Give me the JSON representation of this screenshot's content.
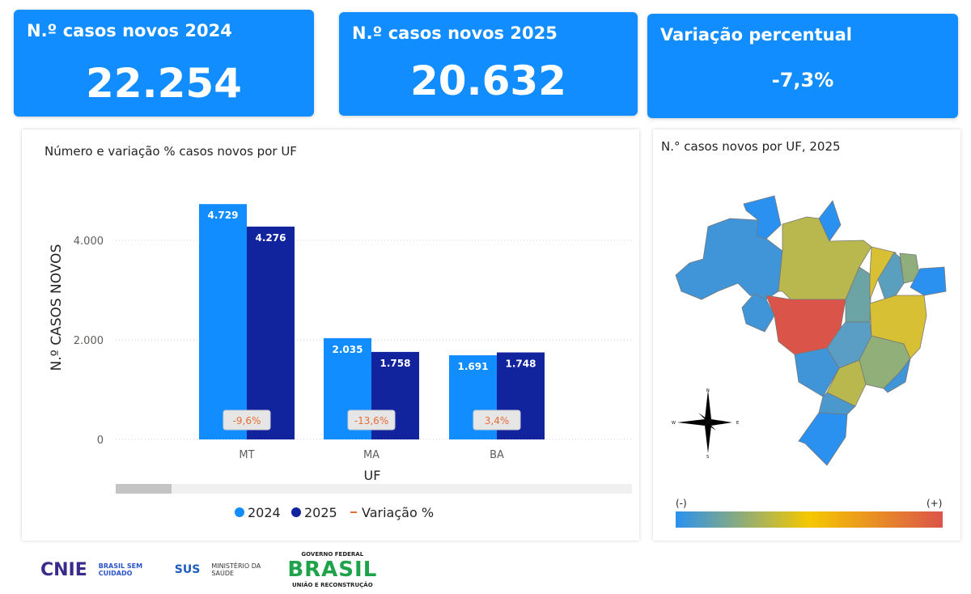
{
  "kpis": [
    {
      "title": "N.º casos novos 2024",
      "value": "22.254"
    },
    {
      "title": "N.º casos novos 2025",
      "value": "20.632"
    },
    {
      "title": "Variação percentual",
      "value": "-7,3%"
    }
  ],
  "chart_data": {
    "type": "bar",
    "title": "Número e variação % casos novos por UF",
    "xlabel": "UF",
    "ylabel": "N.º CASOS NOVOS",
    "categories": [
      "MT",
      "MA",
      "BA"
    ],
    "series": [
      {
        "name": "2024",
        "color": "#118DFF",
        "values": [
          4729,
          2035,
          1691
        ],
        "labels": [
          "4.729",
          "2.035",
          "1.691"
        ]
      },
      {
        "name": "2025",
        "color": "#12239E",
        "values": [
          4276,
          1758,
          1748
        ],
        "labels": [
          "4.276",
          "1.758",
          "1.748"
        ]
      }
    ],
    "variation": {
      "name": "Variação %",
      "color": "#E66C37",
      "labels": [
        "-9,6%",
        "-13,6%",
        "3,4%"
      ]
    },
    "yticks": [
      {
        "v": 0,
        "l": "0"
      },
      {
        "v": 2000,
        "l": "2.000"
      },
      {
        "v": 4000,
        "l": "4.000"
      }
    ],
    "ylim": [
      0,
      4800
    ],
    "grid": true,
    "legend": "bottom"
  },
  "map": {
    "title": "N.° casos novos por UF, 2025",
    "legend_min": "(-)",
    "legend_max": "(+)",
    "compass": {
      "n": "N",
      "s": "S",
      "e": "E",
      "w": "W"
    }
  },
  "footer": {
    "logos": [
      "CNIE",
      "BRASIL SEM CUIDADO",
      "SUS",
      "MINISTÉRIO DA SAÚDE",
      "GOVERNO FEDERAL",
      "BRASIL",
      "UNIÃO E RECONSTRUÇÃO"
    ]
  }
}
